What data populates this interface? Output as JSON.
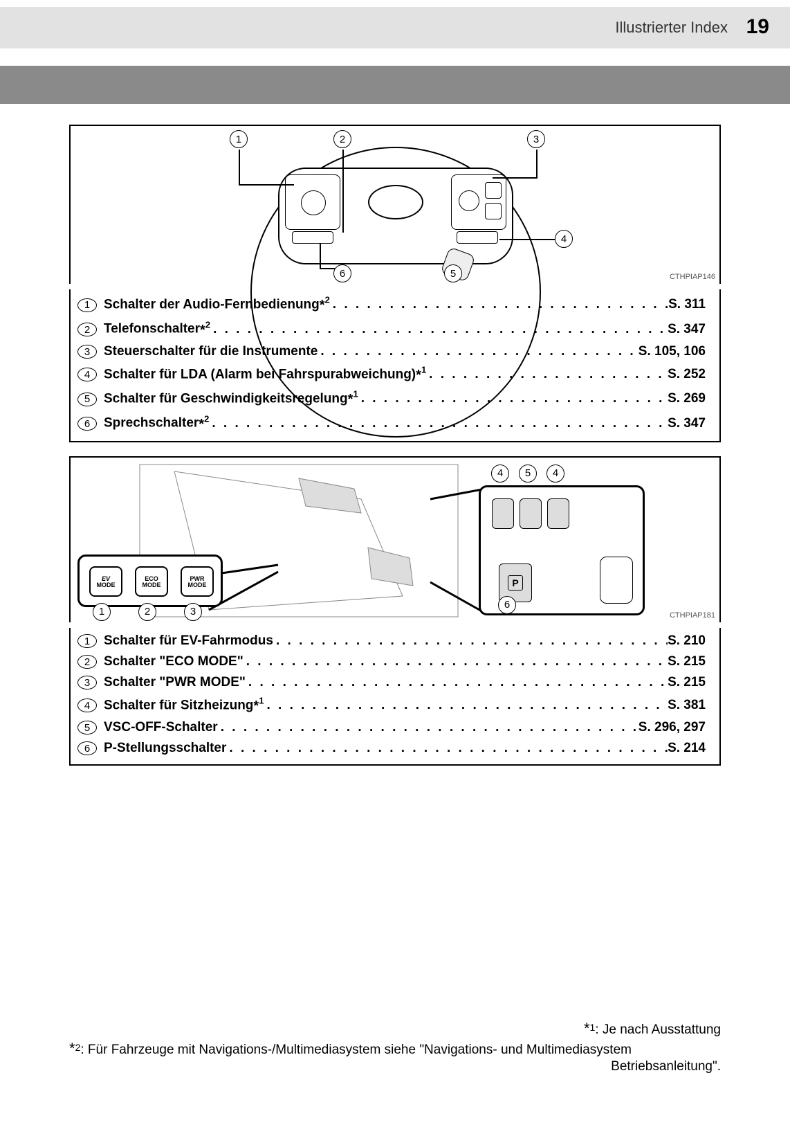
{
  "header": {
    "section_title": "Illustrierter Index",
    "page_number": "19"
  },
  "diagram1": {
    "code": "CTHPIAP146",
    "callouts": [
      "1",
      "2",
      "3",
      "4",
      "5",
      "6"
    ]
  },
  "list1": [
    {
      "num": "1",
      "label": "Schalter der Audio-Fernbedienung",
      "sup": "*2",
      "page": "S. 311"
    },
    {
      "num": "2",
      "label": "Telefonschalter",
      "sup": "*2",
      "page": "S. 347"
    },
    {
      "num": "3",
      "label": "Steuerschalter für die Instrumente",
      "sup": "",
      "page": "S. 105, 106"
    },
    {
      "num": "4",
      "label": "Schalter für LDA (Alarm bei Fahrspurabweichung)",
      "sup": "*1",
      "page": "S. 252"
    },
    {
      "num": "5",
      "label": "Schalter für Geschwindigkeitsregelung",
      "sup": "*1",
      "page": "S. 269"
    },
    {
      "num": "6",
      "label": "Sprechschalter",
      "sup": "*2",
      "page": "S. 347"
    }
  ],
  "diagram2": {
    "code": "CTHPIAP181",
    "mode_buttons": [
      "EV\nMODE",
      "ECO\nMODE",
      "PWR\nMODE"
    ],
    "callouts_top": [
      "4",
      "5",
      "4"
    ],
    "callouts_bottom": [
      "1",
      "2",
      "3",
      "6"
    ],
    "p_label": "P"
  },
  "list2": [
    {
      "num": "1",
      "label": "Schalter für EV-Fahrmodus",
      "sup": "",
      "page": "S. 210"
    },
    {
      "num": "2",
      "label": "Schalter \"ECO MODE\"",
      "sup": "",
      "page": "S. 215"
    },
    {
      "num": "3",
      "label": "Schalter \"PWR MODE\"",
      "sup": "",
      "page": "S. 215"
    },
    {
      "num": "4",
      "label": "Schalter für Sitzheizung",
      "sup": "*1",
      "page": "S. 381"
    },
    {
      "num": "5",
      "label": "VSC-OFF-Schalter",
      "sup": "",
      "page": "S. 296, 297"
    },
    {
      "num": "6",
      "label": "P-Stellungsschalter",
      "sup": "",
      "page": "S. 214"
    }
  ],
  "footnotes": {
    "fn1_marker": "*",
    "fn1_num": "1",
    "fn1_text": ": Je nach Ausstattung",
    "fn2_marker": "*",
    "fn2_num": "2",
    "fn2_text_a": ": Für Fahrzeuge mit Navigations-/Multimediasystem siehe \"Navigations- und Multimediasystem",
    "fn2_text_b": "Betriebsanleitung\"."
  }
}
